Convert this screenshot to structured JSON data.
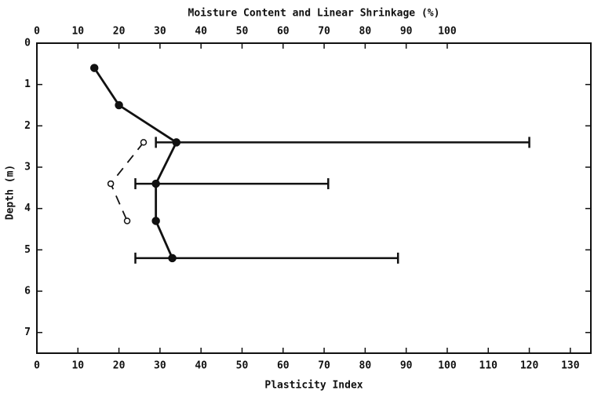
{
  "chart_data": {
    "type": "scatter",
    "title": "Moisture Content and Linear Shrinkage (%)",
    "xlabel": "Plasticity Index",
    "ylabel": "Depth (m)",
    "xlim": [
      0,
      135
    ],
    "xticks": [
      0,
      10,
      20,
      30,
      40,
      50,
      60,
      70,
      80,
      90,
      100,
      110,
      120,
      130
    ],
    "x2ticks": [
      0,
      10,
      20,
      30,
      40,
      50,
      60,
      70,
      80,
      90,
      100
    ],
    "ylim": [
      0,
      7.5
    ],
    "yticks": [
      0,
      1,
      2,
      3,
      4,
      5,
      6,
      7
    ],
    "y_inverted": true,
    "series": [
      {
        "color": "#111111",
        "dashed": false,
        "marker": "filled",
        "x": [
          14,
          20,
          34,
          29,
          29,
          33
        ],
        "y": [
          0.6,
          1.5,
          2.4,
          3.4,
          4.3,
          5.2
        ]
      },
      {
        "color": "#111111",
        "dashed": true,
        "marker": "open",
        "x": [
          26,
          18,
          22
        ],
        "y": [
          2.4,
          3.4,
          4.3
        ]
      }
    ],
    "ranges": {
      "color": "#111111",
      "y": [
        2.4,
        3.4,
        5.2
      ],
      "low": [
        29,
        24,
        24
      ],
      "high": [
        120,
        71,
        88
      ]
    }
  }
}
